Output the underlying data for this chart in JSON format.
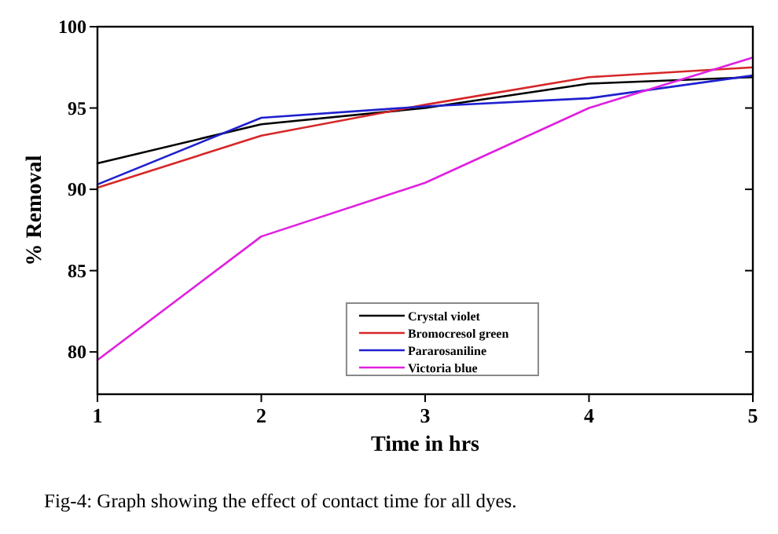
{
  "chart_data": {
    "type": "line",
    "xlabel": "Time in hrs",
    "ylabel": "% Removal",
    "x": [
      1,
      2,
      3,
      4,
      5
    ],
    "xlim": [
      1,
      5
    ],
    "xticks": [
      1,
      2,
      3,
      4,
      5
    ],
    "ylim": [
      77.4,
      100
    ],
    "yticks": [
      80,
      85,
      90,
      95,
      100
    ],
    "grid": false,
    "legend": "bottom",
    "marker": "none",
    "line_style": "solid",
    "series": [
      {
        "name": "Crystal violet",
        "color": "#000000",
        "values": [
          91.6,
          94.0,
          95.0,
          96.5,
          96.9
        ]
      },
      {
        "name": "Bromocresol green",
        "color": "#d62728",
        "values": [
          90.1,
          93.3,
          95.2,
          96.9,
          97.5
        ]
      },
      {
        "name": "Pararosaniline",
        "color": "#1f1fcf",
        "values": [
          90.3,
          94.4,
          95.1,
          95.6,
          97.0
        ]
      },
      {
        "name": "Victoria blue",
        "color": "#e020e0",
        "values": [
          79.5,
          87.1,
          90.4,
          95.0,
          98.1
        ]
      }
    ],
    "annotations": [
      "Fig-4: Graph showing the effect of contact time for all dyes."
    ]
  }
}
